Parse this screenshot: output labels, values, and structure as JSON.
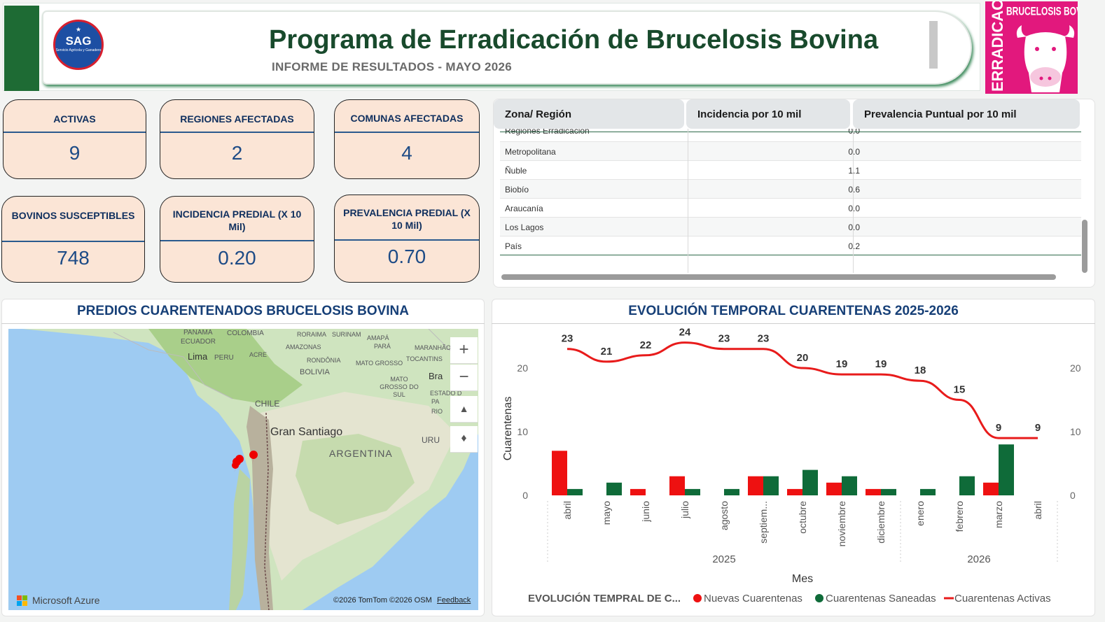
{
  "header": {
    "title": "Programa de Erradicación de Brucelosis Bovina",
    "subtitle": "INFORME DE RESULTADOS  -  MAYO 2026",
    "sag_logo_text": "SAG",
    "sag_logo_sub": "Servicio Agrícola y Ganadero",
    "erradicacion_vertical": "ERRADICACIÓN",
    "erradicacion_top": "BRUCELOSIS BOVINA"
  },
  "kpis": {
    "activas": {
      "label": "ACTIVAS",
      "value": "9"
    },
    "regiones": {
      "label": "REGIONES AFECTADAS",
      "value": "2"
    },
    "comunas": {
      "label": "COMUNAS AFECTADAS",
      "value": "4"
    },
    "bovinos": {
      "label": "BOVINOS SUSCEPTIBLES",
      "value": "748"
    },
    "incidencia": {
      "label": "INCIDENCIA PREDIAL (X 10 Mil)",
      "value": "0.20"
    },
    "prevalencia": {
      "label": "PREVALENCIA PREDIAL (X 10 Mil)",
      "value": "0.70"
    }
  },
  "table": {
    "headers": [
      "Zona/ Región",
      "Incidencia por 10 mil",
      "Prevalencia Puntual por 10 mil"
    ],
    "rows": [
      {
        "region": "Regiones Erradicación",
        "incidencia": "0.0"
      },
      {
        "region": "Metropolitana",
        "incidencia": "0.0"
      },
      {
        "region": "Ñuble",
        "incidencia": "1.1"
      },
      {
        "region": "Biobío",
        "incidencia": "0.6"
      },
      {
        "region": "Araucanía",
        "incidencia": "0.0"
      },
      {
        "region": "Los Lagos",
        "incidencia": "0.0"
      },
      {
        "region": "País",
        "incidencia": "0.2"
      }
    ]
  },
  "map": {
    "title": "PREDIOS CUARENTENADOS BRUCELOSIS BOVINA",
    "labels": {
      "panama": "PANAMÁ",
      "colombia": "COLOMBIA",
      "roraima": "RORAIMA",
      "surinam": "SURINAM",
      "amapa": "AMAPÁ",
      "ecuador": "ECUADOR",
      "amazonas": "AMAZONAS",
      "para": "PARÁ",
      "maranhao": "MARANHÃO",
      "lima": "Lima",
      "peru": "PERU",
      "acre": "ACRE",
      "rondonia": "RONDÔNIA",
      "tocantins": "TOCANTINS",
      "bolivia": "BOLIVIA",
      "mato_grosso": "MATO GROSSO",
      "ms": "MATO GROSSO DO SUL",
      "brasil": "Bra",
      "chile": "CHILE",
      "estado": "ESTADO D",
      "pa": "PA",
      "rio": "RIO",
      "gran_santiago": "Gran Santiago",
      "uru": "URU",
      "argentina": "ARGENTINA"
    },
    "zoom_in": "+",
    "zoom_out": "−",
    "brand": "Microsoft Azure",
    "attribution": "©2026 TomTom  ©2026 OSM",
    "feedback": "Feedback"
  },
  "chart": {
    "title": "EVOLUCIÓN TEMPORAL CUARENTENAS 2025-2026"
  },
  "chart_data": {
    "type": "bar",
    "categories": [
      "abril",
      "mayo",
      "junio",
      "julio",
      "agosto",
      "septiem...",
      "octubre",
      "noviembre",
      "diciembre",
      "enero",
      "febrero",
      "marzo",
      "abril"
    ],
    "year_groups": [
      {
        "label": "2025",
        "start": 0,
        "end": 8
      },
      {
        "label": "2026",
        "start": 9,
        "end": 12
      }
    ],
    "series": [
      {
        "name": "Nuevas Cuarentenas",
        "type": "bar",
        "color": "#ee1111",
        "values": [
          7,
          0,
          1,
          3,
          0,
          3,
          1,
          2,
          1,
          0,
          0,
          2,
          0
        ]
      },
      {
        "name": "Cuarentenas Saneadas",
        "type": "bar",
        "color": "#0f6b39",
        "values": [
          1,
          2,
          0,
          1,
          1,
          3,
          4,
          3,
          1,
          1,
          3,
          8,
          0
        ]
      },
      {
        "name": "Cuarentenas Activas",
        "type": "line",
        "color": "#e81b1b",
        "values": [
          23,
          21,
          22,
          24,
          23,
          23,
          20,
          19,
          19,
          18,
          15,
          9,
          9
        ]
      }
    ],
    "ylabel": "Cuarentenas",
    "xlabel": "Mes",
    "ylim": [
      0,
      26
    ],
    "yticks": [
      0,
      10,
      20
    ],
    "legend_title": "EVOLUCIÓN TEMPRAL DE C...",
    "legend_position": "bottom"
  }
}
